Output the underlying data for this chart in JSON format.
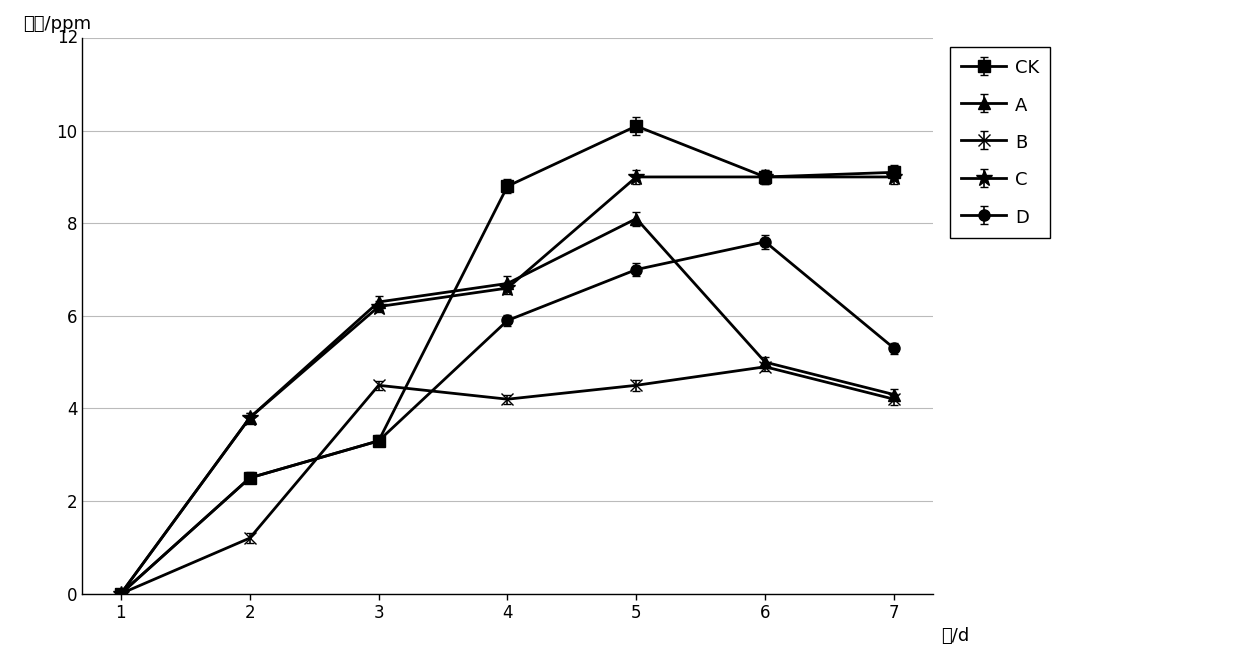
{
  "x": [
    1,
    2,
    3,
    4,
    5,
    6,
    7
  ],
  "series_order": [
    "CK",
    "A",
    "B",
    "C",
    "D"
  ],
  "series": {
    "CK": {
      "y": [
        0.0,
        2.5,
        3.3,
        8.8,
        10.1,
        9.0,
        9.1
      ],
      "yerr": [
        0.05,
        0.12,
        0.12,
        0.15,
        0.2,
        0.15,
        0.15
      ],
      "marker": "s",
      "markersize": 8,
      "label": "CK"
    },
    "A": {
      "y": [
        0.0,
        3.8,
        6.3,
        6.7,
        8.1,
        5.0,
        4.3
      ],
      "yerr": [
        0.05,
        0.1,
        0.12,
        0.15,
        0.15,
        0.12,
        0.12
      ],
      "marker": "^",
      "markersize": 8,
      "label": "A"
    },
    "B": {
      "y": [
        0.0,
        1.2,
        4.5,
        4.2,
        4.5,
        4.9,
        4.2
      ],
      "yerr": [
        0.05,
        0.1,
        0.1,
        0.1,
        0.12,
        0.1,
        0.12
      ],
      "marker": "x",
      "markersize": 9,
      "label": "B"
    },
    "C": {
      "y": [
        0.0,
        3.8,
        6.2,
        6.6,
        9.0,
        9.0,
        9.0
      ],
      "yerr": [
        0.05,
        0.1,
        0.12,
        0.12,
        0.15,
        0.15,
        0.15
      ],
      "marker": "*",
      "markersize": 12,
      "label": "C"
    },
    "D": {
      "y": [
        0.0,
        2.5,
        3.3,
        5.9,
        7.0,
        7.6,
        5.3
      ],
      "yerr": [
        0.05,
        0.1,
        0.1,
        0.12,
        0.15,
        0.15,
        0.12
      ],
      "marker": "o",
      "markersize": 8,
      "label": "D"
    }
  },
  "color": "#000000",
  "ylim": [
    0,
    12
  ],
  "yticks": [
    0,
    2,
    4,
    6,
    8,
    10,
    12
  ],
  "xticks": [
    1,
    2,
    3,
    4,
    5,
    6,
    7
  ],
  "xlabel": "天/d",
  "ylabel": "浓度/ppm",
  "ylabel_12": "12",
  "linewidth": 2.0,
  "background_color": "#ffffff",
  "grid_color": "#bbbbbb",
  "figsize": [
    12.4,
    6.57
  ],
  "dpi": 100,
  "capsize": 3,
  "elinewidth": 1.2
}
